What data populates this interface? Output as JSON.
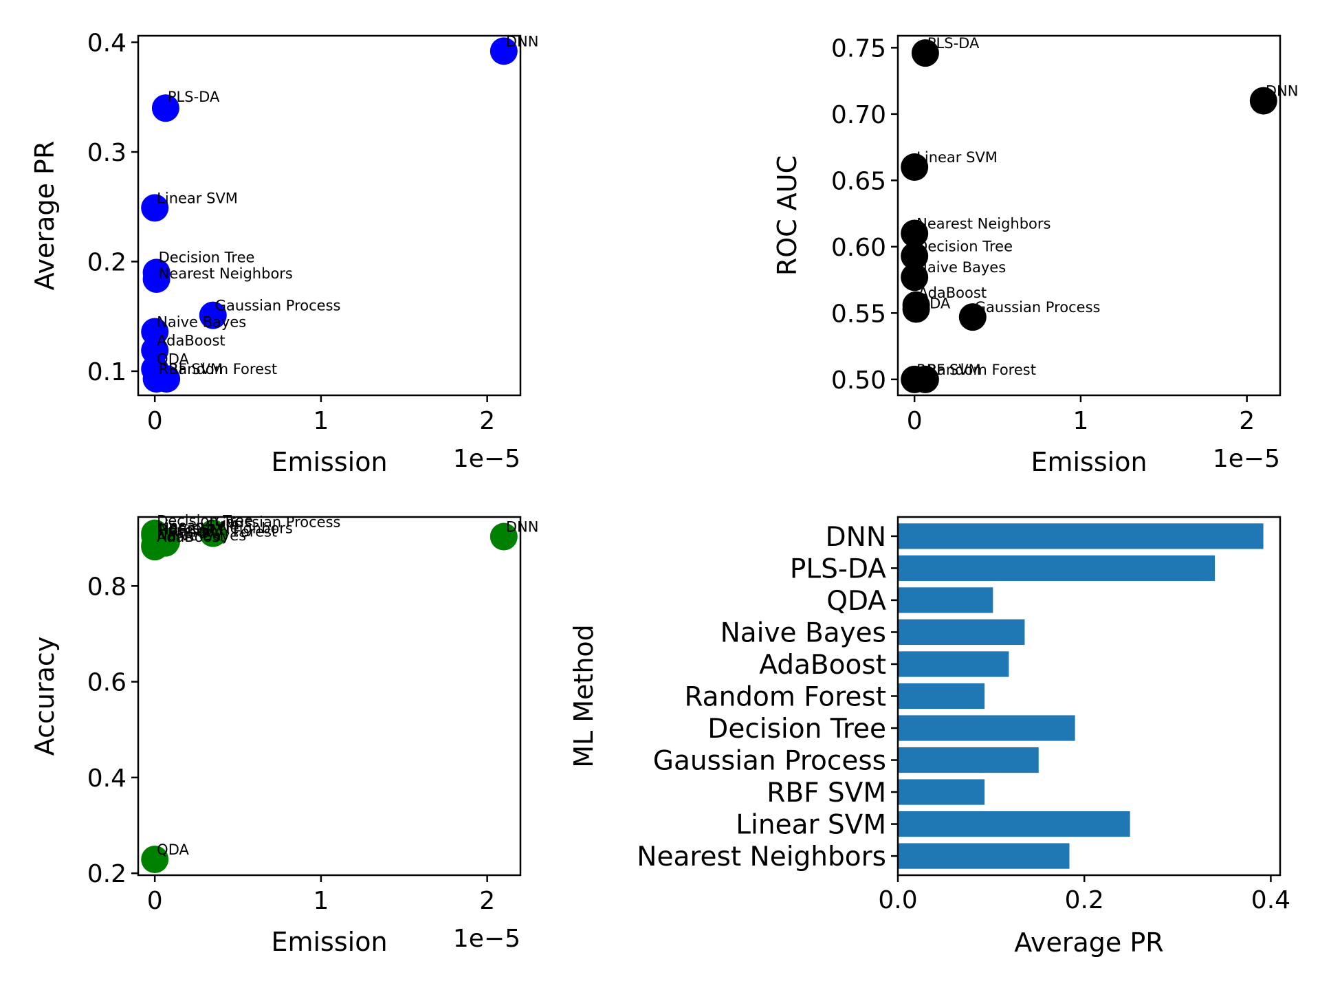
{
  "chart_data": [
    {
      "type": "scatter",
      "xlabel": "Emission",
      "ylabel": "Average PR",
      "x_offset_label": "1e−5",
      "color": "#0000ff",
      "xlim": [
        -0.1,
        2.2
      ],
      "ylim": [
        0.078,
        0.406
      ],
      "xticks": [
        0,
        1,
        2
      ],
      "xtick_labels": [
        "0",
        "1",
        "2"
      ],
      "yticks": [
        0.1,
        0.2,
        0.3,
        0.4
      ],
      "ytick_labels": [
        "0.1",
        "0.2",
        "0.3",
        "0.4"
      ],
      "points": [
        {
          "label": "DNN",
          "x": 2.1,
          "y": 0.392
        },
        {
          "label": "PLS-DA",
          "x": 0.065,
          "y": 0.34
        },
        {
          "label": "Linear SVM",
          "x": 0.0,
          "y": 0.249
        },
        {
          "label": "Decision Tree",
          "x": 0.01,
          "y": 0.19
        },
        {
          "label": "Nearest Neighbors",
          "x": 0.01,
          "y": 0.184
        },
        {
          "label": "Gaussian Process",
          "x": 0.35,
          "y": 0.151
        },
        {
          "label": "Naive Bayes",
          "x": 0.0,
          "y": 0.136
        },
        {
          "label": "AdaBoost",
          "x": 0.0,
          "y": 0.119
        },
        {
          "label": "QDA",
          "x": 0.0,
          "y": 0.102
        },
        {
          "label": "RBF SVM",
          "x": 0.01,
          "y": 0.093
        },
        {
          "label": "Random Forest",
          "x": 0.07,
          "y": 0.093
        }
      ]
    },
    {
      "type": "scatter",
      "xlabel": "Emission",
      "ylabel": "ROC AUC",
      "x_offset_label": "1e−5",
      "color": "#000000",
      "xlim": [
        -0.1,
        2.2
      ],
      "ylim": [
        0.488,
        0.759
      ],
      "xticks": [
        0,
        1,
        2
      ],
      "xtick_labels": [
        "0",
        "1",
        "2"
      ],
      "yticks": [
        0.5,
        0.55,
        0.6,
        0.65,
        0.7,
        0.75
      ],
      "ytick_labels": [
        "0.50",
        "0.55",
        "0.60",
        "0.65",
        "0.70",
        "0.75"
      ],
      "points": [
        {
          "label": "PLS-DA",
          "x": 0.065,
          "y": 0.746
        },
        {
          "label": "DNN",
          "x": 2.1,
          "y": 0.71
        },
        {
          "label": "Linear SVM",
          "x": 0.0,
          "y": 0.66
        },
        {
          "label": "Nearest Neighbors",
          "x": 0.0,
          "y": 0.61
        },
        {
          "label": "Decision Tree",
          "x": 0.0,
          "y": 0.593
        },
        {
          "label": "Naive Bayes",
          "x": 0.0,
          "y": 0.577
        },
        {
          "label": "AdaBoost",
          "x": 0.01,
          "y": 0.556
        },
        {
          "label": "QDA",
          "x": 0.01,
          "y": 0.553
        },
        {
          "label": "Gaussian Process",
          "x": 0.35,
          "y": 0.547
        },
        {
          "label": "RBF SVM",
          "x": 0.0,
          "y": 0.5
        },
        {
          "label": "Random Forest",
          "x": 0.065,
          "y": 0.5
        }
      ]
    },
    {
      "type": "scatter",
      "xlabel": "Emission",
      "ylabel": "Accuracy",
      "x_offset_label": "1e−5",
      "color": "#008000",
      "xlim": [
        -0.1,
        2.2
      ],
      "ylim": [
        0.196,
        0.944
      ],
      "xticks": [
        0,
        1,
        2
      ],
      "xtick_labels": [
        "0",
        "1",
        "2"
      ],
      "yticks": [
        0.2,
        0.4,
        0.6,
        0.8
      ],
      "ytick_labels": [
        "0.2",
        "0.4",
        "0.6",
        "0.8"
      ],
      "points": [
        {
          "label": "Decision Tree",
          "x": 0.0,
          "y": 0.91
        },
        {
          "label": "Linear SVM",
          "x": 0.0,
          "y": 0.905
        },
        {
          "label": "Gaussian Process",
          "x": 0.35,
          "y": 0.91
        },
        {
          "label": "Nearest Neighbors",
          "x": 0.01,
          "y": 0.9
        },
        {
          "label": "RBF SVM",
          "x": 0.01,
          "y": 0.897
        },
        {
          "label": "Random Forest",
          "x": 0.07,
          "y": 0.893
        },
        {
          "label": "PLS-DA",
          "x": 0.065,
          "y": 0.89
        },
        {
          "label": "Naive Bayes",
          "x": 0.0,
          "y": 0.885
        },
        {
          "label": "AdaBoost",
          "x": 0.0,
          "y": 0.882
        },
        {
          "label": "DNN",
          "x": 2.1,
          "y": 0.903
        },
        {
          "label": "QDA",
          "x": 0.0,
          "y": 0.229
        }
      ]
    },
    {
      "type": "bar",
      "orientation": "horizontal",
      "xlabel": "Average PR",
      "ylabel": "ML Method",
      "color": "#1f77b4",
      "xlim": [
        0,
        0.41
      ],
      "xticks": [
        0.0,
        0.2,
        0.4
      ],
      "xtick_labels": [
        "0.0",
        "0.2",
        "0.4"
      ],
      "categories": [
        "Nearest Neighbors",
        "Linear SVM",
        "RBF SVM",
        "Gaussian Process",
        "Decision Tree",
        "Random Forest",
        "AdaBoost",
        "Naive Bayes",
        "QDA",
        "PLS-DA",
        "DNN"
      ],
      "values": [
        0.184,
        0.249,
        0.093,
        0.151,
        0.19,
        0.093,
        0.119,
        0.136,
        0.102,
        0.34,
        0.392
      ]
    }
  ]
}
